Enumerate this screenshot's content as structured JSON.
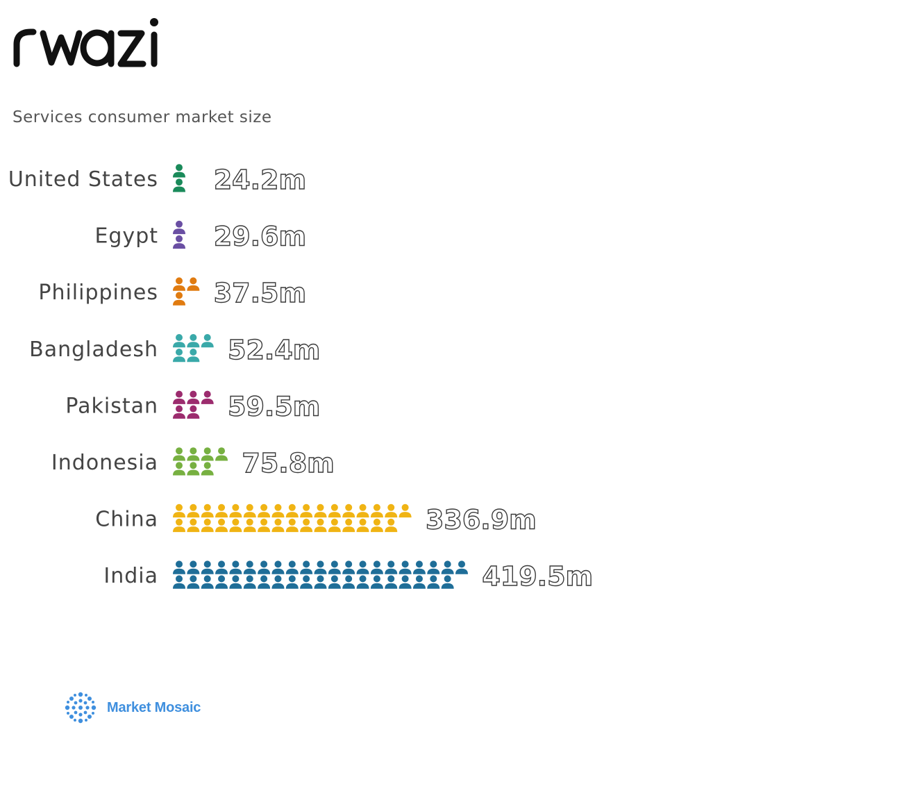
{
  "logo": {
    "text": "rwazi"
  },
  "subtitle": "Services consumer market size",
  "chart_data": {
    "type": "bar",
    "style": "pictograph",
    "unit_per_icon_millions": 10,
    "title": "",
    "xlabel": "",
    "ylabel": "",
    "categories": [
      "United States",
      "Egypt",
      "Philippines",
      "Bangladesh",
      "Pakistan",
      "Indonesia",
      "China",
      "India"
    ],
    "values": [
      24.2,
      29.6,
      37.5,
      52.4,
      59.5,
      75.8,
      336.9,
      419.5
    ],
    "value_labels": [
      "24.2m",
      "29.6m",
      "37.5m",
      "52.4m",
      "59.5m",
      "75.8m",
      "336.9m",
      "419.5m"
    ],
    "colors": [
      "#1a8a5a",
      "#6a4fa3",
      "#e07b10",
      "#3aa9a9",
      "#9c2c6e",
      "#77b041",
      "#f0b414",
      "#1f6e98"
    ],
    "grid": false,
    "legend": "none"
  },
  "footer": {
    "brand": "Market Mosaic",
    "brand_color": "#3f8fde"
  }
}
